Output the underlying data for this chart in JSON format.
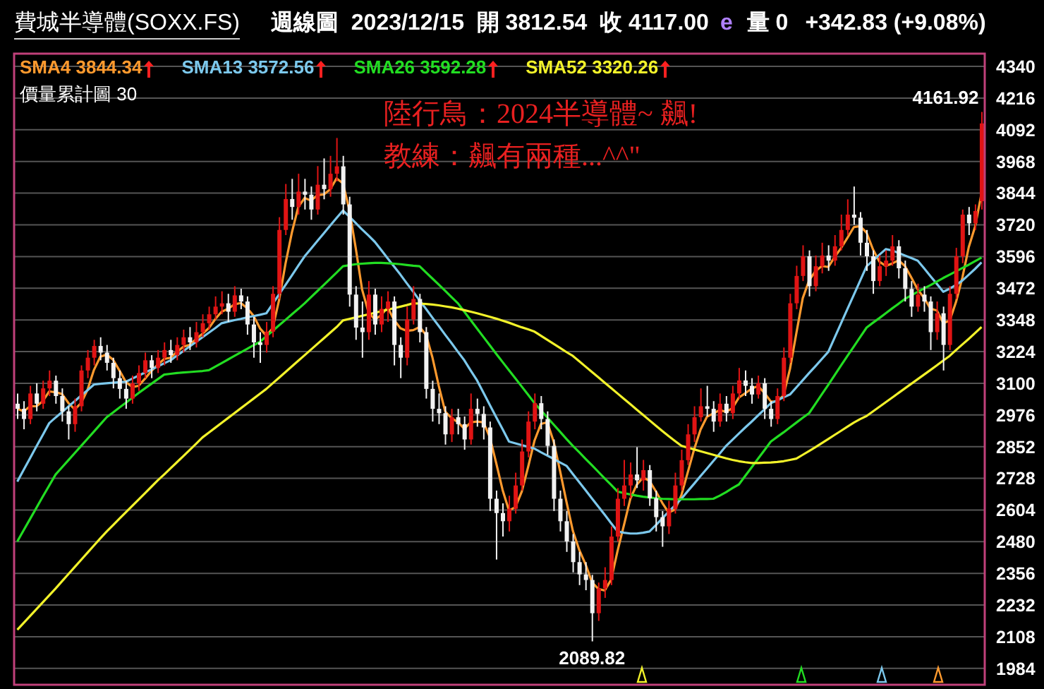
{
  "chart_data": {
    "type": "candlestick",
    "title": "費城半導體(SOXX.FS)",
    "subtitle": "週線圖  2023/12/15  開 3812.54  收 4117.00",
    "annotations": [
      "價量累計圖 30",
      "陸行鳥：2024半導體~ 飆!",
      "教練：飆有兩種...^^\"",
      "e",
      "量 0",
      "+342.83 (+9.08%)",
      "4161.92",
      "2089.82"
    ],
    "legend": "top left",
    "grid": "y",
    "ylim": [
      1920,
      4390
    ],
    "yticks": [
      1984,
      2108,
      2232,
      2356,
      2480,
      2604,
      2728,
      2852,
      2976,
      3100,
      3224,
      3348,
      3472,
      3596,
      3720,
      3844,
      3968,
      4092,
      4216,
      4340
    ],
    "categories": [
      null,
      null,
      null,
      null,
      null,
      null,
      null,
      null,
      null,
      null,
      null,
      null,
      null,
      null,
      null,
      null,
      null,
      null,
      null,
      null,
      null,
      null,
      null,
      null,
      null,
      null,
      null,
      null,
      null,
      null,
      null,
      null,
      null,
      null,
      null,
      null,
      null,
      null,
      null,
      null,
      null,
      null,
      null,
      null,
      null,
      null,
      null,
      null,
      null,
      null,
      null,
      null,
      null,
      null,
      null,
      null,
      null,
      null,
      null,
      null,
      null,
      null,
      null,
      null,
      null,
      null,
      null,
      null,
      null,
      null,
      null,
      null,
      null,
      null,
      null,
      null,
      null,
      null,
      null,
      null,
      null,
      null,
      null,
      null,
      null,
      null,
      null,
      null,
      null,
      null,
      null,
      null,
      null,
      null,
      null,
      null,
      null,
      null,
      null,
      null,
      null,
      null,
      null,
      null,
      null,
      null,
      null,
      null,
      null,
      null,
      null,
      null,
      null,
      null,
      null,
      null,
      null,
      null,
      null,
      null,
      null,
      null,
      null,
      null,
      null,
      null,
      null,
      null,
      null,
      null,
      null,
      null,
      null,
      null,
      null,
      null,
      null,
      null,
      null,
      null,
      null,
      null,
      null,
      null,
      null,
      null,
      null,
      null,
      null,
      null,
      null,
      null
    ],
    "ohlc": [
      [
        3020,
        3060,
        2960,
        3000
      ],
      [
        3000,
        3030,
        2920,
        2960
      ],
      [
        2960,
        3090,
        2940,
        3060
      ],
      [
        3060,
        3100,
        2990,
        3020
      ],
      [
        3020,
        3110,
        3000,
        3080
      ],
      [
        3080,
        3150,
        3050,
        3110
      ],
      [
        3110,
        3130,
        3020,
        3050
      ],
      [
        3050,
        3080,
        2950,
        2990
      ],
      [
        2990,
        3010,
        2880,
        2940
      ],
      [
        2940,
        3040,
        2910,
        3010
      ],
      [
        3010,
        3170,
        2990,
        3150
      ],
      [
        3150,
        3230,
        3120,
        3200
      ],
      [
        3200,
        3270,
        3170,
        3246
      ],
      [
        3246,
        3280,
        3190,
        3220
      ],
      [
        3220,
        3250,
        3150,
        3180
      ],
      [
        3180,
        3200,
        3080,
        3120
      ],
      [
        3120,
        3150,
        3040,
        3078
      ],
      [
        3078,
        3110,
        3000,
        3040
      ],
      [
        3040,
        3130,
        3020,
        3100
      ],
      [
        3100,
        3170,
        3070,
        3140
      ],
      [
        3140,
        3220,
        3120,
        3190
      ],
      [
        3190,
        3210,
        3120,
        3160
      ],
      [
        3160,
        3230,
        3140,
        3200
      ],
      [
        3200,
        3260,
        3170,
        3230
      ],
      [
        3230,
        3270,
        3180,
        3210
      ],
      [
        3210,
        3280,
        3190,
        3250
      ],
      [
        3250,
        3310,
        3220,
        3280
      ],
      [
        3280,
        3320,
        3230,
        3260
      ],
      [
        3260,
        3340,
        3240,
        3300
      ],
      [
        3300,
        3370,
        3280,
        3335
      ],
      [
        3335,
        3400,
        3310,
        3370
      ],
      [
        3370,
        3440,
        3350,
        3400
      ],
      [
        3400,
        3460,
        3370,
        3413
      ],
      [
        3413,
        3450,
        3340,
        3380
      ],
      [
        3380,
        3480,
        3360,
        3444
      ],
      [
        3444,
        3470,
        3390,
        3420
      ],
      [
        3420,
        3440,
        3290,
        3330
      ],
      [
        3330,
        3360,
        3200,
        3260
      ],
      [
        3260,
        3300,
        3180,
        3250
      ],
      [
        3250,
        3340,
        3220,
        3302
      ],
      [
        3302,
        3480,
        3280,
        3450
      ],
      [
        3450,
        3750,
        3430,
        3700
      ],
      [
        3700,
        3880,
        3680,
        3821
      ],
      [
        3821,
        3900,
        3740,
        3790
      ],
      [
        3790,
        3920,
        3760,
        3850
      ],
      [
        3850,
        3900,
        3780,
        3838
      ],
      [
        3838,
        3870,
        3740,
        3780
      ],
      [
        3780,
        3950,
        3760,
        3877
      ],
      [
        3877,
        3980,
        3820,
        3860
      ],
      [
        3860,
        3990,
        3830,
        3920
      ],
      [
        3920,
        4060,
        3890,
        3949
      ],
      [
        3949,
        3990,
        3760,
        3800
      ],
      [
        3800,
        3830,
        3400,
        3447
      ],
      [
        3447,
        3480,
        3270,
        3318
      ],
      [
        3318,
        3420,
        3200,
        3300
      ],
      [
        3300,
        3500,
        3270,
        3447
      ],
      [
        3447,
        3470,
        3290,
        3330
      ],
      [
        3330,
        3440,
        3300,
        3391
      ],
      [
        3391,
        3460,
        3340,
        3420
      ],
      [
        3420,
        3440,
        3170,
        3250
      ],
      [
        3250,
        3280,
        3120,
        3200
      ],
      [
        3200,
        3400,
        3170,
        3350
      ],
      [
        3350,
        3480,
        3330,
        3430
      ],
      [
        3430,
        3450,
        3260,
        3300
      ],
      [
        3300,
        3320,
        3040,
        3078
      ],
      [
        3078,
        3110,
        2950,
        3000
      ],
      [
        3000,
        3060,
        2940,
        2983
      ],
      [
        2983,
        3010,
        2860,
        2900
      ],
      [
        2900,
        3000,
        2870,
        2967
      ],
      [
        2967,
        3000,
        2900,
        2940
      ],
      [
        2940,
        2970,
        2840,
        2880
      ],
      [
        2880,
        3060,
        2860,
        3000
      ],
      [
        3000,
        3040,
        2930,
        2980
      ],
      [
        2980,
        3010,
        2880,
        2927
      ],
      [
        2927,
        2950,
        2600,
        2648
      ],
      [
        2648,
        2680,
        2410,
        2592
      ],
      [
        2592,
        2630,
        2500,
        2560
      ],
      [
        2560,
        2660,
        2520,
        2609
      ],
      [
        2609,
        2750,
        2590,
        2700
      ],
      [
        2700,
        2880,
        2680,
        2833
      ],
      [
        2833,
        2990,
        2810,
        2950
      ],
      [
        2950,
        3060,
        2920,
        3022
      ],
      [
        3022,
        3050,
        2920,
        2960
      ],
      [
        2960,
        2990,
        2820,
        2855
      ],
      [
        2855,
        2880,
        2600,
        2648
      ],
      [
        2648,
        2680,
        2520,
        2560
      ],
      [
        2560,
        2600,
        2440,
        2481
      ],
      [
        2481,
        2510,
        2360,
        2400
      ],
      [
        2400,
        2440,
        2310,
        2352
      ],
      [
        2352,
        2400,
        2290,
        2330
      ],
      [
        2330,
        2350,
        2089.82,
        2200
      ],
      [
        2200,
        2320,
        2170,
        2297
      ],
      [
        2297,
        2380,
        2260,
        2330
      ],
      [
        2330,
        2540,
        2310,
        2500
      ],
      [
        2500,
        2690,
        2480,
        2648
      ],
      [
        2648,
        2800,
        2620,
        2700
      ],
      [
        2700,
        2790,
        2650,
        2743
      ],
      [
        2743,
        2850,
        2690,
        2720
      ],
      [
        2720,
        2800,
        2680,
        2760
      ],
      [
        2760,
        2780,
        2620,
        2650
      ],
      [
        2650,
        2680,
        2520,
        2576
      ],
      [
        2576,
        2600,
        2460,
        2540
      ],
      [
        2540,
        2640,
        2510,
        2609
      ],
      [
        2609,
        2750,
        2590,
        2700
      ],
      [
        2700,
        2840,
        2680,
        2799
      ],
      [
        2799,
        2940,
        2780,
        2900
      ],
      [
        2900,
        3010,
        2870,
        2967
      ],
      [
        2967,
        3080,
        2950,
        3010
      ],
      [
        3010,
        3090,
        2970,
        3000
      ],
      [
        3000,
        3030,
        2910,
        2950
      ],
      [
        2950,
        3060,
        2930,
        3020
      ],
      [
        3020,
        3050,
        2950,
        2983
      ],
      [
        2983,
        3090,
        2960,
        3060
      ],
      [
        3060,
        3160,
        3040,
        3111
      ],
      [
        3111,
        3150,
        3050,
        3090
      ],
      [
        3090,
        3120,
        3020,
        3056
      ],
      [
        3056,
        3130,
        3040,
        3100
      ],
      [
        3100,
        3120,
        2960,
        3000
      ],
      [
        3000,
        3030,
        2930,
        2960
      ],
      [
        2960,
        3080,
        2940,
        3050
      ],
      [
        3050,
        3240,
        3030,
        3200
      ],
      [
        3200,
        3450,
        3180,
        3413
      ],
      [
        3413,
        3560,
        3390,
        3520
      ],
      [
        3520,
        3640,
        3500,
        3597
      ],
      [
        3597,
        3620,
        3440,
        3480
      ],
      [
        3480,
        3600,
        3460,
        3558
      ],
      [
        3558,
        3650,
        3530,
        3600
      ],
      [
        3600,
        3640,
        3540,
        3580
      ],
      [
        3580,
        3680,
        3560,
        3636
      ],
      [
        3636,
        3760,
        3620,
        3700
      ],
      [
        3700,
        3820,
        3680,
        3760
      ],
      [
        3760,
        3870,
        3720,
        3748
      ],
      [
        3748,
        3770,
        3600,
        3650
      ],
      [
        3650,
        3700,
        3540,
        3597
      ],
      [
        3597,
        3620,
        3450,
        3500
      ],
      [
        3500,
        3600,
        3480,
        3558
      ],
      [
        3558,
        3620,
        3520,
        3580
      ],
      [
        3580,
        3680,
        3560,
        3636
      ],
      [
        3636,
        3660,
        3510,
        3550
      ],
      [
        3550,
        3580,
        3420,
        3469
      ],
      [
        3469,
        3500,
        3360,
        3400
      ],
      [
        3400,
        3490,
        3380,
        3447
      ],
      [
        3447,
        3480,
        3380,
        3420
      ],
      [
        3420,
        3440,
        3230,
        3300
      ],
      [
        3300,
        3420,
        3270,
        3374
      ],
      [
        3374,
        3400,
        3150,
        3250
      ],
      [
        3250,
        3480,
        3230,
        3450
      ],
      [
        3450,
        3630,
        3430,
        3597
      ],
      [
        3597,
        3780,
        3570,
        3760
      ],
      [
        3760,
        3790,
        3680,
        3726
      ],
      [
        3726,
        3800,
        3700,
        3774.17
      ],
      [
        3812.54,
        4161.92,
        3780,
        4117
      ]
    ],
    "series": [
      {
        "name": "SMA4 3844.34",
        "type": "line",
        "color": "#ff9a2e",
        "values": [
          3000,
          2990,
          3010,
          3010,
          3030,
          3068,
          3065,
          3058,
          3023,
          2998,
          3023,
          3075,
          3152,
          3204,
          3212,
          3192,
          3150,
          3105,
          3085,
          3090,
          3118,
          3148,
          3173,
          3195,
          3200,
          3223,
          3243,
          3250,
          3273,
          3294,
          3316,
          3351,
          3380,
          3391,
          3409,
          3414,
          3394,
          3364,
          3315,
          3286,
          3316,
          3426,
          3568,
          3690,
          3790,
          3825,
          3815,
          3836,
          3839,
          3859,
          3902,
          3882,
          3779,
          3629,
          3466,
          3378,
          3349,
          3367,
          3397,
          3348,
          3315,
          3305,
          3308,
          3320,
          3290,
          3202,
          3090,
          2990,
          2963,
          2948,
          2922,
          2947,
          2950,
          2947,
          2889,
          2787,
          2682,
          2602,
          2615,
          2676,
          2773,
          2876,
          2941,
          2947,
          2871,
          2756,
          2636,
          2522,
          2448,
          2391,
          2321,
          2295,
          2289,
          2332,
          2444,
          2545,
          2648,
          2703,
          2731,
          2718,
          2677,
          2632,
          2594,
          2606,
          2662,
          2752,
          2842,
          2919,
          2969,
          2982,
          2995,
          2988,
          3003,
          3044,
          3061,
          3079,
          3089,
          3062,
          3029,
          3028,
          3053,
          3156,
          3296,
          3433,
          3503,
          3539,
          3559,
          3555,
          3594,
          3629,
          3669,
          3711,
          3715,
          3689,
          3624,
          3576,
          3559,
          3569,
          3581,
          3559,
          3514,
          3467,
          3434,
          3392,
          3385,
          3336,
          3344,
          3418,
          3514,
          3633,
          3714,
          3844
        ]
      },
      {
        "name": "SMA13 3572.56",
        "type": "line",
        "color": "#7cc8ec",
        "values": [
          2715,
          2761,
          2807,
          2853,
          2898,
          2944,
          2966,
          2987,
          3009,
          3030,
          3052,
          3073,
          3095,
          3098,
          3100,
          3102,
          3104,
          3106,
          3118,
          3130,
          3142,
          3154,
          3166,
          3178,
          3190,
          3208,
          3226,
          3244,
          3262,
          3280,
          3298,
          3316,
          3335,
          3341,
          3347,
          3352,
          3358,
          3363,
          3368,
          3374,
          3411,
          3448,
          3485,
          3522,
          3560,
          3597,
          3627,
          3657,
          3687,
          3717,
          3747,
          3776,
          3752,
          3727,
          3702,
          3678,
          3653,
          3621,
          3589,
          3557,
          3525,
          3491,
          3458,
          3424,
          3391,
          3357,
          3324,
          3290,
          3257,
          3223,
          3190,
          3150,
          3111,
          3063,
          3015,
          2967,
          2920,
          2872,
          2865,
          2858,
          2851,
          2844,
          2830,
          2817,
          2804,
          2790,
          2777,
          2745,
          2713,
          2681,
          2649,
          2617,
          2585,
          2552,
          2520,
          2515,
          2512,
          2512,
          2515,
          2520,
          2545,
          2571,
          2597,
          2622,
          2648,
          2678,
          2707,
          2737,
          2766,
          2796,
          2825,
          2855,
          2879,
          2903,
          2927,
          2950,
          2974,
          2998,
          3022,
          3033,
          3045,
          3056,
          3084,
          3112,
          3140,
          3167,
          3195,
          3223,
          3279,
          3335,
          3391,
          3446,
          3502,
          3558,
          3580,
          3603,
          3625,
          3620,
          3610,
          3600,
          3590,
          3580,
          3550,
          3519,
          3489,
          3458,
          3470,
          3485,
          3502,
          3525,
          3548,
          3573
        ]
      },
      {
        "name": "SMA26 3592.28",
        "type": "line",
        "color": "#22dd22",
        "values": [
          2481,
          2525,
          2569,
          2613,
          2657,
          2700,
          2743,
          2771,
          2799,
          2827,
          2855,
          2883,
          2911,
          2939,
          2967,
          2986,
          3005,
          3024,
          3043,
          3062,
          3080,
          3098,
          3116,
          3134,
          3137,
          3140,
          3142,
          3144,
          3146,
          3148,
          3151,
          3165,
          3179,
          3193,
          3207,
          3221,
          3235,
          3249,
          3262,
          3284,
          3305,
          3327,
          3348,
          3370,
          3391,
          3413,
          3437,
          3461,
          3485,
          3509,
          3533,
          3558,
          3562,
          3566,
          3568,
          3570,
          3571,
          3571,
          3570,
          3568,
          3566,
          3563,
          3560,
          3558,
          3534,
          3510,
          3486,
          3462,
          3437,
          3413,
          3380,
          3347,
          3314,
          3281,
          3248,
          3215,
          3183,
          3151,
          3119,
          3087,
          3055,
          3022,
          2994,
          2966,
          2938,
          2910,
          2882,
          2855,
          2830,
          2804,
          2779,
          2753,
          2727,
          2702,
          2676,
          2670,
          2665,
          2660,
          2656,
          2653,
          2650,
          2648,
          2647,
          2646,
          2646,
          2646,
          2646,
          2647,
          2647,
          2648,
          2660,
          2674,
          2690,
          2704,
          2738,
          2771,
          2805,
          2838,
          2872,
          2890,
          2908,
          2927,
          2946,
          2965,
          2983,
          3020,
          3057,
          3094,
          3132,
          3170,
          3207,
          3244,
          3281,
          3318,
          3337,
          3355,
          3374,
          3393,
          3411,
          3430,
          3444,
          3458,
          3471,
          3484,
          3498,
          3512,
          3525,
          3538,
          3551,
          3564,
          3578,
          3592
        ]
      },
      {
        "name": "SMA52 3320.26",
        "type": "line",
        "color": "#f2f22a",
        "values": [
          2135,
          2162,
          2189,
          2216,
          2243,
          2270,
          2297,
          2325,
          2353,
          2381,
          2409,
          2437,
          2465,
          2493,
          2520,
          2545,
          2570,
          2595,
          2620,
          2645,
          2670,
          2695,
          2720,
          2743,
          2767,
          2791,
          2815,
          2839,
          2863,
          2888,
          2907,
          2926,
          2945,
          2964,
          2983,
          3002,
          3021,
          3040,
          3059,
          3078,
          3100,
          3122,
          3144,
          3166,
          3188,
          3210,
          3232,
          3254,
          3276,
          3298,
          3320,
          3346,
          3352,
          3358,
          3364,
          3370,
          3376,
          3382,
          3388,
          3394,
          3400,
          3406,
          3413,
          3412,
          3410,
          3408,
          3405,
          3401,
          3397,
          3392,
          3386,
          3380,
          3374,
          3367,
          3360,
          3353,
          3345,
          3337,
          3328,
          3319,
          3311,
          3302,
          3286,
          3270,
          3254,
          3238,
          3222,
          3207,
          3186,
          3165,
          3144,
          3123,
          3102,
          3081,
          3060,
          3039,
          3018,
          2997,
          2976,
          2955,
          2934,
          2913,
          2893,
          2874,
          2855,
          2848,
          2841,
          2834,
          2827,
          2820,
          2813,
          2806,
          2800,
          2795,
          2791,
          2788,
          2788,
          2789,
          2790,
          2792,
          2795,
          2800,
          2805,
          2820,
          2835,
          2850,
          2866,
          2882,
          2898,
          2914,
          2930,
          2946,
          2960,
          2972,
          2990,
          3008,
          3026,
          3044,
          3062,
          3080,
          3098,
          3116,
          3134,
          3152,
          3170,
          3189,
          3207,
          3230,
          3252,
          3274,
          3297,
          3320
        ]
      }
    ]
  }
}
